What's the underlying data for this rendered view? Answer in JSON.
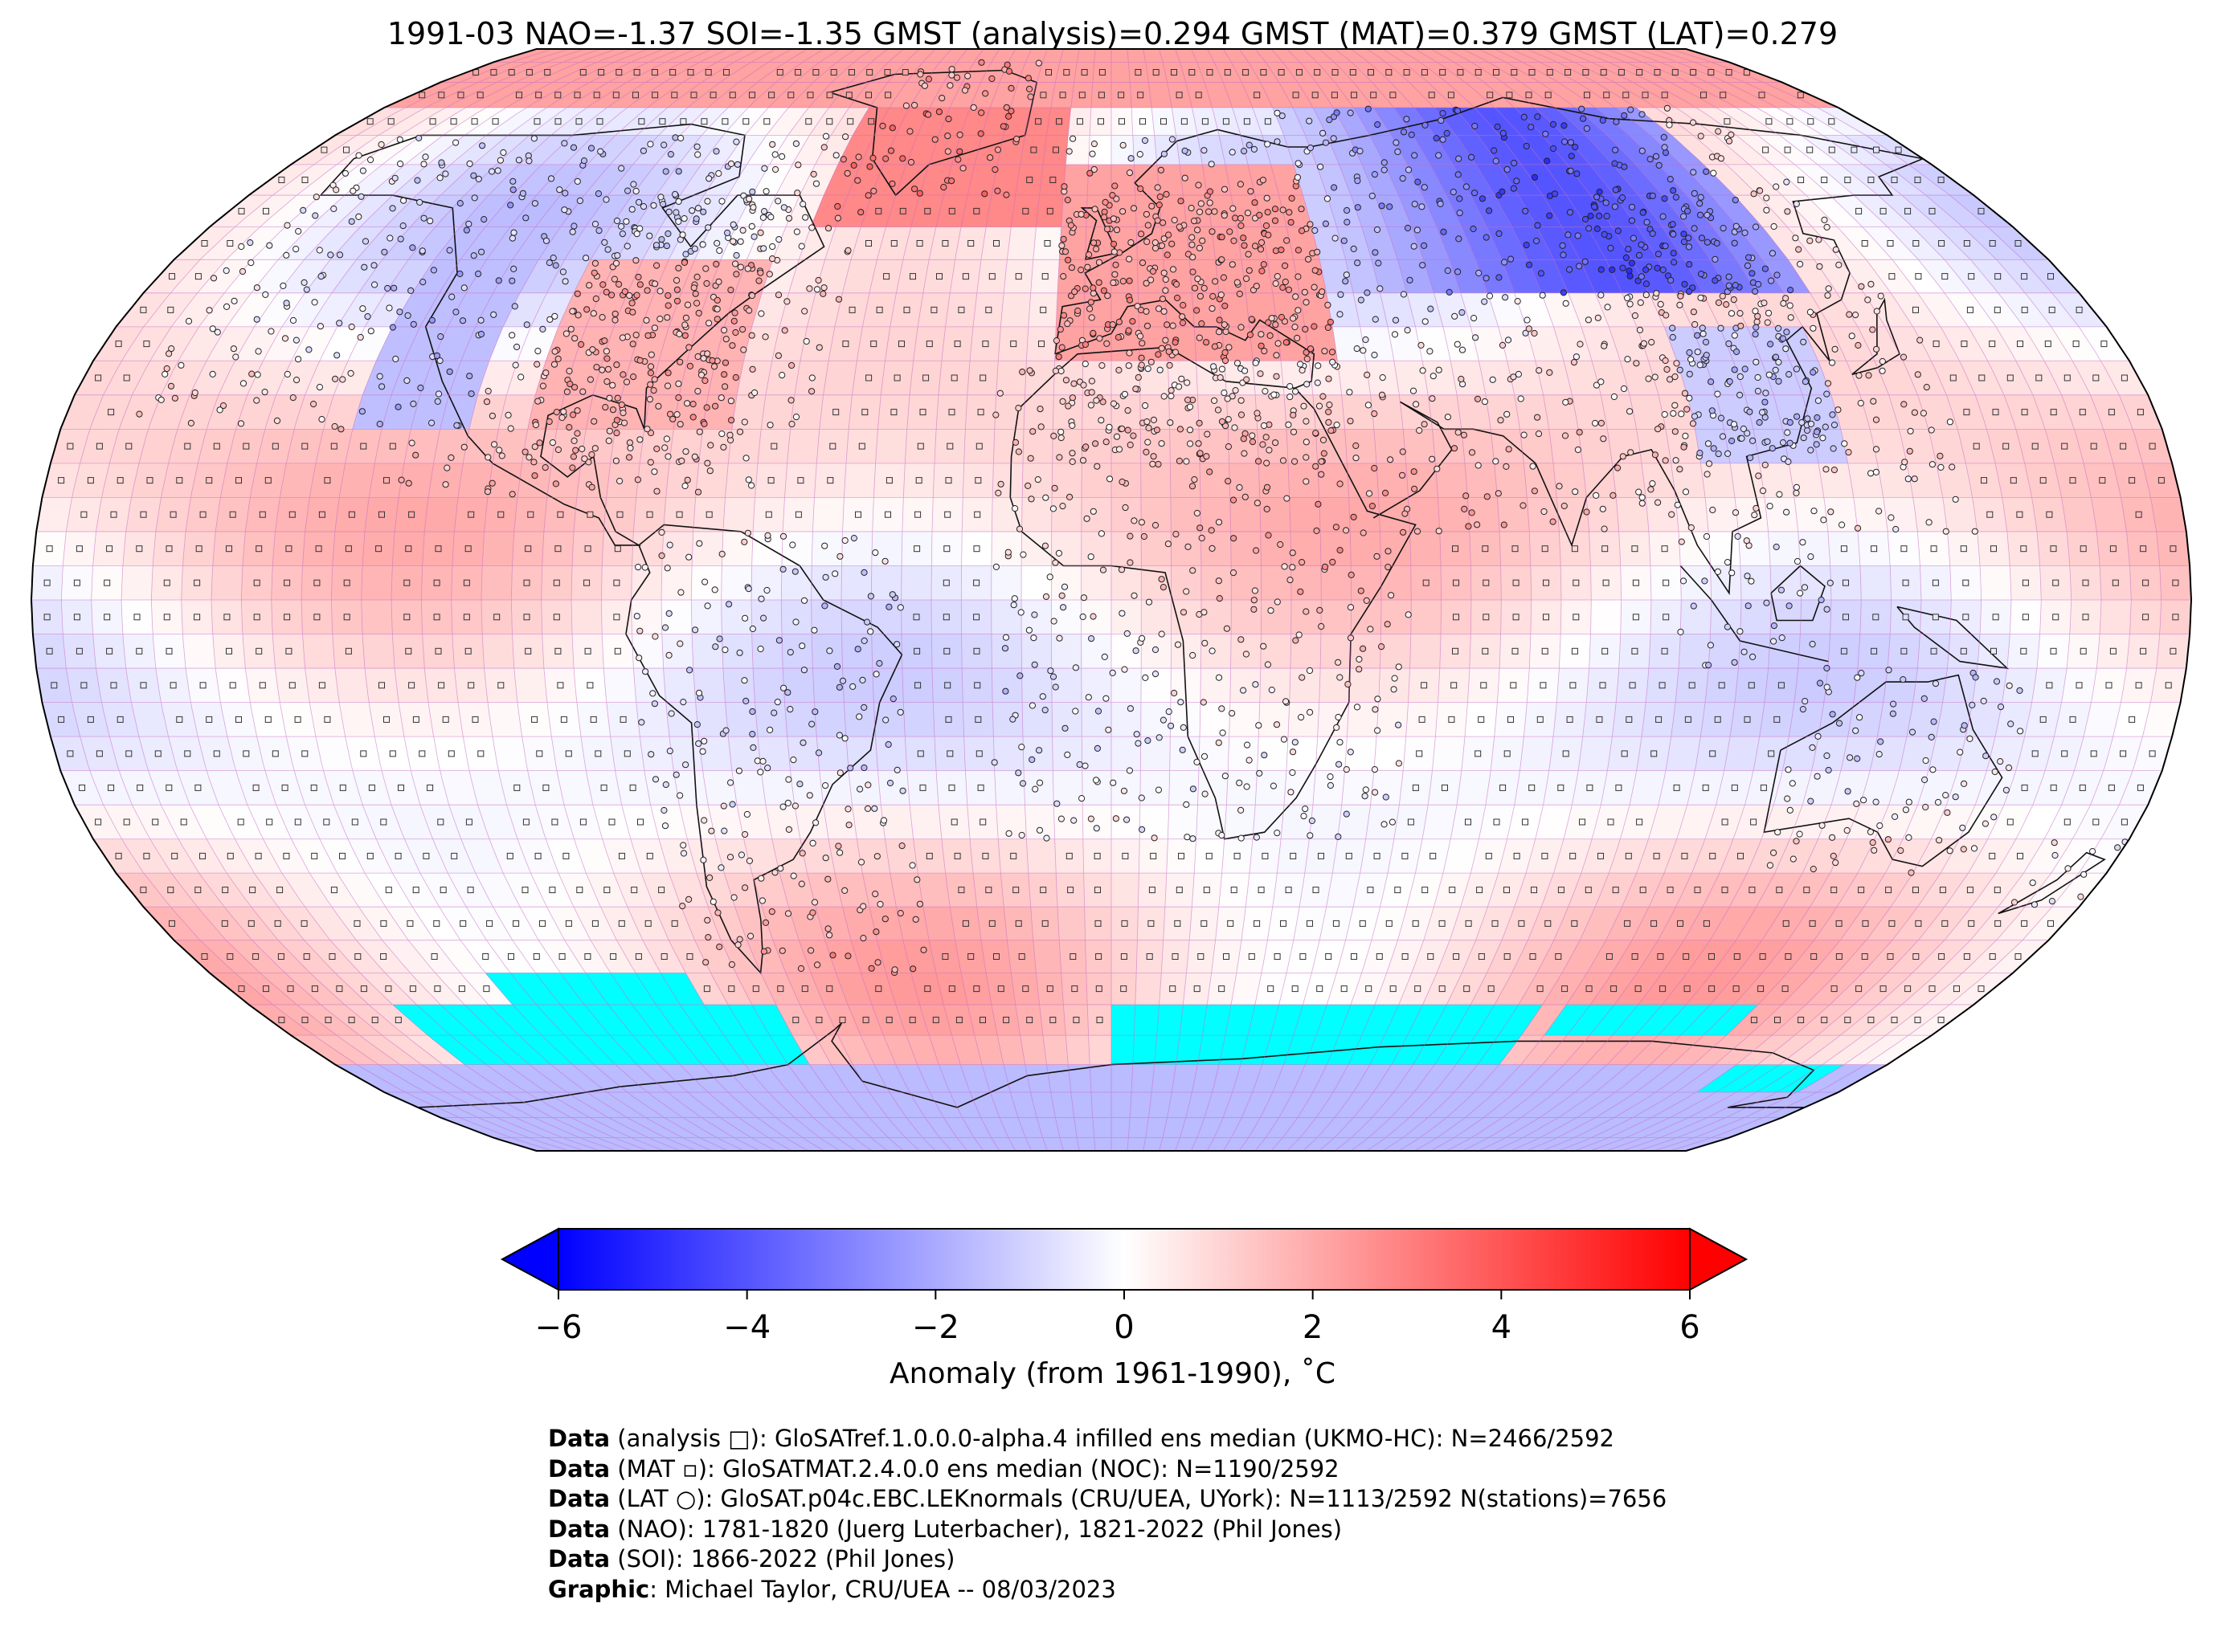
{
  "title": "1991-03 NAO=-1.37 SOI=-1.35 GMST (analysis)=0.294 GMST (MAT)=0.379 GMST (LAT)=0.279",
  "colorbar": {
    "min": -6,
    "max": 6,
    "ticks": [
      "−6",
      "−4",
      "−2",
      "0",
      "2",
      "4",
      "6"
    ],
    "tick_values": [
      -6,
      -4,
      -2,
      0,
      2,
      4,
      6
    ],
    "label": "Anomaly (from 1961-1990), ˚C",
    "colors": {
      "low": "#0000ff",
      "mid": "#ffffff",
      "high": "#ff0000"
    }
  },
  "map": {
    "projection": "Robinson",
    "missing_color": "#00ffff",
    "grid_color": "#c060c0"
  },
  "credits": [
    {
      "bold": "Data",
      "text": " (analysis □): GloSATref.1.0.0.0-alpha.4 infilled ens median (UKMO-HC): N=2466/2592"
    },
    {
      "bold": "Data",
      "text": " (MAT ▫): GloSATMAT.2.4.0.0 ens median (NOC): N=1190/2592"
    },
    {
      "bold": "Data",
      "text": " (LAT ○): GloSAT.p04c.EBC.LEKnormals (CRU/UEA, UYork): N=1113/2592 N(stations)=7656"
    },
    {
      "bold": "Data",
      "text": " (NAO): 1781-1820 (Juerg Luterbacher), 1821-2022 (Phil Jones)"
    },
    {
      "bold": "Data",
      "text": " (SOI): 1866-2022 (Phil Jones)"
    },
    {
      "bold": "Graphic",
      "text": ": Michael Taylor, CRU/UEA -- 08/03/2023"
    }
  ]
}
